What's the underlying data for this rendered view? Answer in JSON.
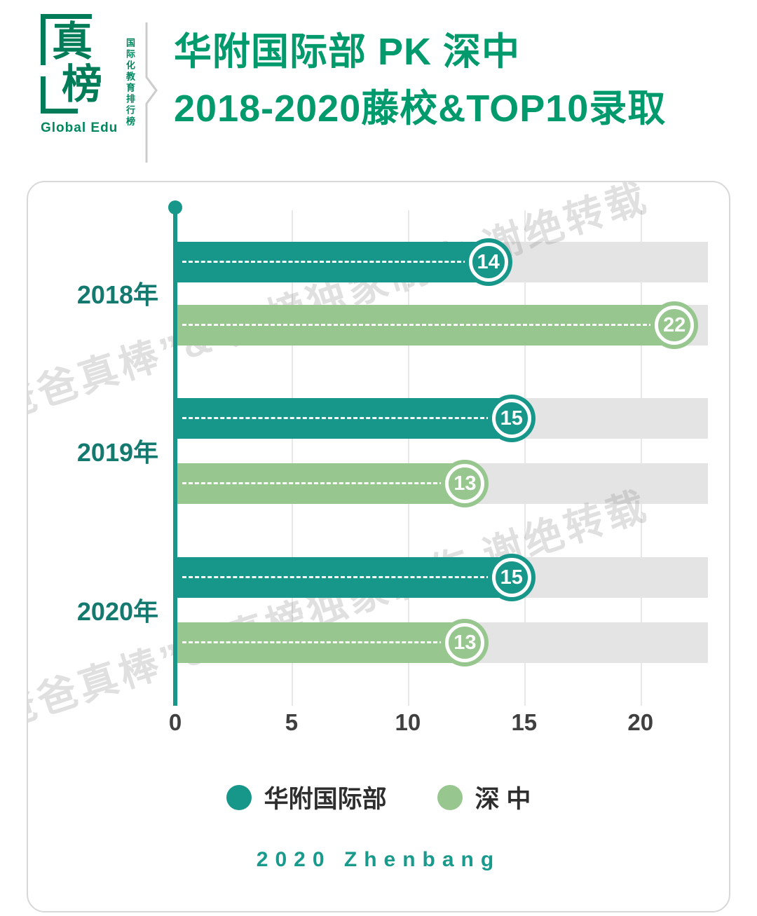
{
  "header": {
    "logo_main": "真",
    "logo_main2": "榜",
    "logo_vertical": "国际化教育排行榜",
    "logo_caption": "Global Edu",
    "title_line1": "华附国际部 PK 深中",
    "title_line2": "2018-2020藤校&TOP10录取"
  },
  "chart_data": {
    "type": "bar",
    "orientation": "horizontal",
    "title": "华附国际部 PK 深中 2018-2020藤校&TOP10录取",
    "categories": [
      "2018年",
      "2019年",
      "2020年"
    ],
    "series": [
      {
        "name": "华附国际部",
        "color": "#17968a",
        "values": [
          14,
          15,
          15
        ]
      },
      {
        "name": "深中",
        "color": "#97c78f",
        "values": [
          22,
          13,
          13
        ]
      }
    ],
    "xticks": [
      0,
      5,
      10,
      15,
      20
    ],
    "xlim": [
      0,
      22.9
    ],
    "track_color": "#e4e4e4",
    "axis_color": "#17968a",
    "grid": true,
    "legend_position": "bottom"
  },
  "watermark": {
    "line": "“爸爸真棒”&  真榜独家制作  谢绝转载"
  },
  "legend": {
    "items": [
      {
        "label": "华附国际部"
      },
      {
        "label": "深 中"
      }
    ]
  },
  "footer": {
    "text": "2020 Zhenbang"
  }
}
